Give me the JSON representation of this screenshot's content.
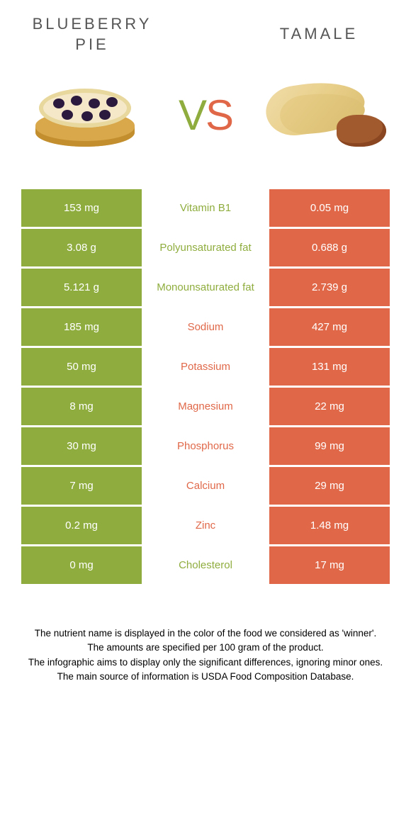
{
  "header": {
    "left_title": "Blueberry pie",
    "right_title": "Tamale",
    "vs_v": "V",
    "vs_s": "S"
  },
  "colors": {
    "green": "#8fad3e",
    "orange": "#e06849",
    "nutrient_green": "#8fad3e",
    "nutrient_orange": "#e06849"
  },
  "rows": [
    {
      "left": "153 mg",
      "nutrient": "Vitamin B1",
      "right": "0.05 mg",
      "winner": "left"
    },
    {
      "left": "3.08 g",
      "nutrient": "Polyunsaturated fat",
      "right": "0.688 g",
      "winner": "left"
    },
    {
      "left": "5.121 g",
      "nutrient": "Monounsaturated fat",
      "right": "2.739 g",
      "winner": "left"
    },
    {
      "left": "185 mg",
      "nutrient": "Sodium",
      "right": "427 mg",
      "winner": "right"
    },
    {
      "left": "50 mg",
      "nutrient": "Potassium",
      "right": "131 mg",
      "winner": "right"
    },
    {
      "left": "8 mg",
      "nutrient": "Magnesium",
      "right": "22 mg",
      "winner": "right"
    },
    {
      "left": "30 mg",
      "nutrient": "Phosphorus",
      "right": "99 mg",
      "winner": "right"
    },
    {
      "left": "7 mg",
      "nutrient": "Calcium",
      "right": "29 mg",
      "winner": "right"
    },
    {
      "left": "0.2 mg",
      "nutrient": "Zinc",
      "right": "1.48 mg",
      "winner": "right"
    },
    {
      "left": "0 mg",
      "nutrient": "Cholesterol",
      "right": "17 mg",
      "winner": "left"
    }
  ],
  "footnotes": [
    "The nutrient name is displayed in the color of the food we considered as 'winner'.",
    "The amounts are specified per 100 gram of the product.",
    "The infographic aims to display only the significant differences, ignoring minor ones.",
    "The main source of information is USDA Food Composition Database."
  ]
}
